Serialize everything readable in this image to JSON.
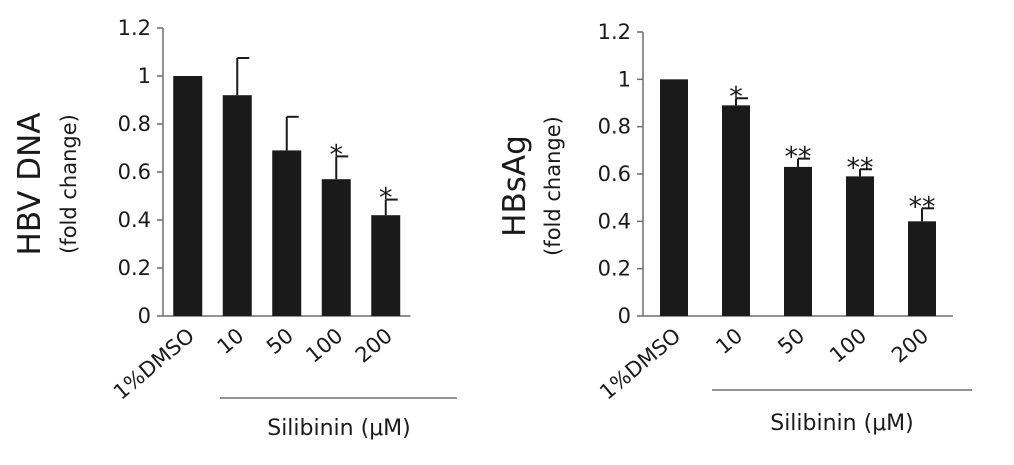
{
  "chart_data": [
    {
      "type": "bar",
      "categories": [
        "1%DMSO",
        "10",
        "50",
        "100",
        "200"
      ],
      "values": [
        1.0,
        0.92,
        0.69,
        0.57,
        0.42
      ],
      "errors": [
        0.0,
        0.155,
        0.14,
        0.095,
        0.065
      ],
      "significance": [
        "",
        "",
        "",
        "*",
        "*"
      ],
      "ylabel": "HBV DNA",
      "ylabel_sub": "(fold change)",
      "xgroup_label": "Silibinin (μM)",
      "ylim": [
        0,
        1.2
      ],
      "yticks": [
        "0",
        "0.2",
        "0.4",
        "0.6",
        "0.8",
        "1",
        "1.2"
      ],
      "grid": false,
      "bar_color": "#1a1a1a"
    },
    {
      "type": "bar",
      "categories": [
        "1%DMSO",
        "10",
        "50",
        "100",
        "200"
      ],
      "values": [
        1.0,
        0.89,
        0.63,
        0.59,
        0.4
      ],
      "errors": [
        0.0,
        0.03,
        0.035,
        0.03,
        0.055
      ],
      "significance": [
        "",
        "*",
        "**",
        "**",
        "**"
      ],
      "ylabel": "HBsAg",
      "ylabel_sub": "(fold change)",
      "xgroup_label": "Silibinin (μM)",
      "ylim": [
        0,
        1.2
      ],
      "yticks": [
        "0",
        "0.2",
        "0.4",
        "0.6",
        "0.8",
        "1",
        "1.2"
      ],
      "grid": false,
      "bar_color": "#1a1a1a"
    }
  ]
}
